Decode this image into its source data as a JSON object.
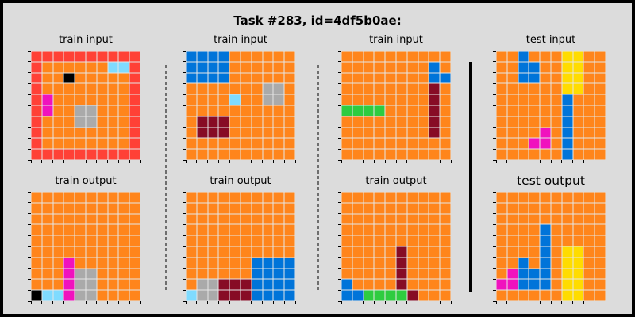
{
  "title": "Task #283, id=4df5b0ae:",
  "palette": {
    "0": "#000000",
    "1": "#0074d9",
    "2": "#ff4136",
    "3": "#2ecc40",
    "4": "#ffdc00",
    "5": "#aaaaaa",
    "6": "#f012be",
    "7": "#ff851b",
    "8": "#7fdbff",
    "9": "#870c25"
  },
  "panels": [
    {
      "id": "train-input-1",
      "label": "train input",
      "col": 0,
      "row": 0,
      "grid": [
        [
          2,
          2,
          2,
          2,
          2,
          2,
          2,
          2,
          2,
          2
        ],
        [
          2,
          7,
          7,
          7,
          7,
          7,
          7,
          8,
          8,
          2
        ],
        [
          2,
          7,
          7,
          0,
          7,
          7,
          7,
          7,
          7,
          2
        ],
        [
          2,
          7,
          7,
          7,
          7,
          7,
          7,
          7,
          7,
          2
        ],
        [
          2,
          6,
          7,
          7,
          7,
          7,
          7,
          7,
          7,
          2
        ],
        [
          2,
          6,
          7,
          7,
          5,
          5,
          7,
          7,
          7,
          2
        ],
        [
          2,
          7,
          7,
          7,
          5,
          5,
          7,
          7,
          7,
          2
        ],
        [
          2,
          7,
          7,
          7,
          7,
          7,
          7,
          7,
          7,
          2
        ],
        [
          2,
          7,
          7,
          7,
          7,
          7,
          7,
          7,
          7,
          2
        ],
        [
          2,
          2,
          2,
          2,
          2,
          2,
          2,
          2,
          2,
          2
        ]
      ]
    },
    {
      "id": "train-output-1",
      "label": "train output",
      "col": 0,
      "row": 1,
      "grid": [
        [
          7,
          7,
          7,
          7,
          7,
          7,
          7,
          7,
          7,
          7
        ],
        [
          7,
          7,
          7,
          7,
          7,
          7,
          7,
          7,
          7,
          7
        ],
        [
          7,
          7,
          7,
          7,
          7,
          7,
          7,
          7,
          7,
          7
        ],
        [
          7,
          7,
          7,
          7,
          7,
          7,
          7,
          7,
          7,
          7
        ],
        [
          7,
          7,
          7,
          7,
          7,
          7,
          7,
          7,
          7,
          7
        ],
        [
          7,
          7,
          7,
          7,
          7,
          7,
          7,
          7,
          7,
          7
        ],
        [
          7,
          7,
          7,
          6,
          7,
          7,
          7,
          7,
          7,
          7
        ],
        [
          7,
          7,
          7,
          6,
          5,
          5,
          7,
          7,
          7,
          7
        ],
        [
          7,
          7,
          7,
          6,
          5,
          5,
          7,
          7,
          7,
          7
        ],
        [
          0,
          8,
          8,
          6,
          5,
          5,
          7,
          7,
          7,
          7
        ]
      ]
    },
    {
      "id": "train-input-2",
      "label": "train input",
      "col": 1,
      "row": 0,
      "grid": [
        [
          1,
          1,
          1,
          1,
          7,
          7,
          7,
          7,
          7,
          7
        ],
        [
          1,
          1,
          1,
          1,
          7,
          7,
          7,
          7,
          7,
          7
        ],
        [
          1,
          1,
          1,
          1,
          7,
          7,
          7,
          7,
          7,
          7
        ],
        [
          7,
          7,
          7,
          7,
          7,
          7,
          7,
          5,
          5,
          7
        ],
        [
          7,
          7,
          7,
          7,
          8,
          7,
          7,
          5,
          5,
          7
        ],
        [
          7,
          7,
          7,
          7,
          7,
          7,
          7,
          7,
          7,
          7
        ],
        [
          7,
          9,
          9,
          9,
          7,
          7,
          7,
          7,
          7,
          7
        ],
        [
          7,
          9,
          9,
          9,
          7,
          7,
          7,
          7,
          7,
          7
        ],
        [
          7,
          7,
          7,
          7,
          7,
          7,
          7,
          7,
          7,
          7
        ],
        [
          7,
          7,
          7,
          7,
          7,
          7,
          7,
          7,
          7,
          7
        ]
      ]
    },
    {
      "id": "train-output-2",
      "label": "train output",
      "col": 1,
      "row": 1,
      "grid": [
        [
          7,
          7,
          7,
          7,
          7,
          7,
          7,
          7,
          7,
          7
        ],
        [
          7,
          7,
          7,
          7,
          7,
          7,
          7,
          7,
          7,
          7
        ],
        [
          7,
          7,
          7,
          7,
          7,
          7,
          7,
          7,
          7,
          7
        ],
        [
          7,
          7,
          7,
          7,
          7,
          7,
          7,
          7,
          7,
          7
        ],
        [
          7,
          7,
          7,
          7,
          7,
          7,
          7,
          7,
          7,
          7
        ],
        [
          7,
          7,
          7,
          7,
          7,
          7,
          7,
          7,
          7,
          7
        ],
        [
          7,
          7,
          7,
          7,
          7,
          7,
          1,
          1,
          1,
          1
        ],
        [
          7,
          7,
          7,
          7,
          7,
          7,
          1,
          1,
          1,
          1
        ],
        [
          7,
          5,
          5,
          9,
          9,
          9,
          1,
          1,
          1,
          1
        ],
        [
          8,
          5,
          5,
          9,
          9,
          9,
          1,
          1,
          1,
          1
        ]
      ]
    },
    {
      "id": "train-input-3",
      "label": "train input",
      "col": 2,
      "row": 0,
      "grid": [
        [
          7,
          7,
          7,
          7,
          7,
          7,
          7,
          7,
          7,
          7
        ],
        [
          7,
          7,
          7,
          7,
          7,
          7,
          7,
          7,
          1,
          7
        ],
        [
          7,
          7,
          7,
          7,
          7,
          7,
          7,
          7,
          1,
          1
        ],
        [
          7,
          7,
          7,
          7,
          7,
          7,
          7,
          7,
          9,
          7
        ],
        [
          7,
          7,
          7,
          7,
          7,
          7,
          7,
          7,
          9,
          7
        ],
        [
          3,
          3,
          3,
          3,
          7,
          7,
          7,
          7,
          9,
          7
        ],
        [
          7,
          7,
          7,
          7,
          7,
          7,
          7,
          7,
          9,
          7
        ],
        [
          7,
          7,
          7,
          7,
          7,
          7,
          7,
          7,
          9,
          7
        ],
        [
          7,
          7,
          7,
          7,
          7,
          7,
          7,
          7,
          7,
          7
        ],
        [
          7,
          7,
          7,
          7,
          7,
          7,
          7,
          7,
          7,
          7
        ]
      ]
    },
    {
      "id": "train-output-3",
      "label": "train output",
      "col": 2,
      "row": 1,
      "grid": [
        [
          7,
          7,
          7,
          7,
          7,
          7,
          7,
          7,
          7,
          7
        ],
        [
          7,
          7,
          7,
          7,
          7,
          7,
          7,
          7,
          7,
          7
        ],
        [
          7,
          7,
          7,
          7,
          7,
          7,
          7,
          7,
          7,
          7
        ],
        [
          7,
          7,
          7,
          7,
          7,
          7,
          7,
          7,
          7,
          7
        ],
        [
          7,
          7,
          7,
          7,
          7,
          7,
          7,
          7,
          7,
          7
        ],
        [
          7,
          7,
          7,
          7,
          7,
          9,
          7,
          7,
          7,
          7
        ],
        [
          7,
          7,
          7,
          7,
          7,
          9,
          7,
          7,
          7,
          7
        ],
        [
          7,
          7,
          7,
          7,
          7,
          9,
          7,
          7,
          7,
          7
        ],
        [
          1,
          7,
          7,
          7,
          7,
          9,
          7,
          7,
          7,
          7
        ],
        [
          1,
          1,
          3,
          3,
          3,
          3,
          9,
          7,
          7,
          7
        ]
      ]
    },
    {
      "id": "test-input",
      "label": "test input",
      "col": 3,
      "row": 0,
      "grid": [
        [
          7,
          7,
          1,
          7,
          7,
          7,
          4,
          4,
          7,
          7
        ],
        [
          7,
          7,
          1,
          1,
          7,
          7,
          4,
          4,
          7,
          7
        ],
        [
          7,
          7,
          1,
          1,
          7,
          7,
          4,
          4,
          7,
          7
        ],
        [
          7,
          7,
          7,
          7,
          7,
          7,
          4,
          4,
          7,
          7
        ],
        [
          7,
          7,
          7,
          7,
          7,
          7,
          1,
          7,
          7,
          7
        ],
        [
          7,
          7,
          7,
          7,
          7,
          7,
          1,
          7,
          7,
          7
        ],
        [
          7,
          7,
          7,
          7,
          7,
          7,
          1,
          7,
          7,
          7
        ],
        [
          7,
          7,
          7,
          7,
          6,
          7,
          1,
          7,
          7,
          7
        ],
        [
          7,
          7,
          7,
          6,
          6,
          7,
          1,
          7,
          7,
          7
        ],
        [
          7,
          7,
          7,
          7,
          7,
          7,
          1,
          7,
          7,
          7
        ]
      ]
    },
    {
      "id": "test-output",
      "label": "test output",
      "col": 3,
      "row": 1,
      "big": true,
      "grid": [
        [
          7,
          7,
          7,
          7,
          7,
          7,
          7,
          7,
          7,
          7
        ],
        [
          7,
          7,
          7,
          7,
          7,
          7,
          7,
          7,
          7,
          7
        ],
        [
          7,
          7,
          7,
          7,
          7,
          7,
          7,
          7,
          7,
          7
        ],
        [
          7,
          7,
          7,
          7,
          1,
          7,
          7,
          7,
          7,
          7
        ],
        [
          7,
          7,
          7,
          7,
          1,
          7,
          7,
          7,
          7,
          7
        ],
        [
          7,
          7,
          7,
          7,
          1,
          7,
          4,
          4,
          7,
          7
        ],
        [
          7,
          7,
          1,
          7,
          1,
          7,
          4,
          4,
          7,
          7
        ],
        [
          7,
          6,
          1,
          1,
          1,
          7,
          4,
          4,
          7,
          7
        ],
        [
          6,
          6,
          1,
          1,
          1,
          7,
          4,
          4,
          7,
          7
        ],
        [
          7,
          7,
          7,
          7,
          7,
          7,
          4,
          4,
          7,
          7
        ]
      ]
    }
  ]
}
